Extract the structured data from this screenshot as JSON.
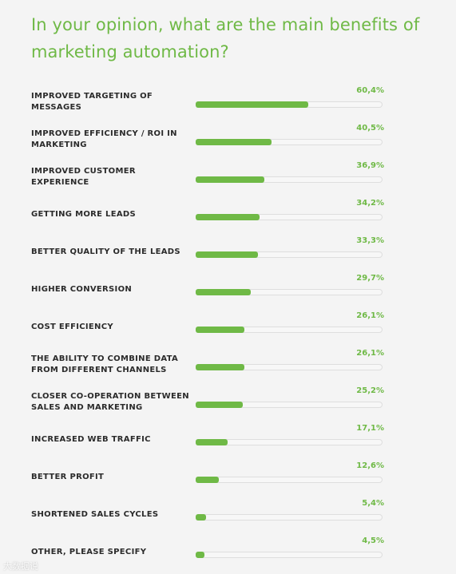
{
  "chart_data": {
    "type": "bar",
    "orientation": "horizontal",
    "title": "In your opinion, what are the main benefits of marketing automation?",
    "categories": [
      "IMPROVED TARGETING OF MESSAGES",
      "IMPROVED EFFICIENCY / ROI IN MARKETING",
      "IMPROVED CUSTOMER EXPERIENCE",
      "GETTING MORE LEADS",
      "BETTER QUALITY OF THE LEADS",
      "HIGHER CONVERSION",
      "COST EFFICIENCY",
      "THE ABILITY TO COMBINE DATA FROM DIFFERENT CHANNELS",
      "CLOSER CO-OPERATION BETWEEN SALES AND MARKETING",
      "INCREASED WEB TRAFFIC",
      "BETTER PROFIT",
      "SHORTENED SALES CYCLES",
      "OTHER, PLEASE SPECIFY"
    ],
    "values": [
      60.4,
      40.5,
      36.9,
      34.2,
      33.3,
      29.7,
      26.1,
      26.1,
      25.2,
      17.1,
      12.6,
      5.4,
      4.5
    ],
    "value_labels": [
      "60,4%",
      "40,5%",
      "36,9%",
      "34,2%",
      "33,3%",
      "29,7%",
      "26,1%",
      "26,1%",
      "25,2%",
      "17,1%",
      "12,6%",
      "5,4%",
      "4,5%"
    ],
    "unit": "%",
    "xlim": [
      0,
      100
    ],
    "grid": false,
    "legend": "none"
  },
  "colors": {
    "bar": "#6fb946",
    "title": "#6fb946",
    "value_label": "#6fb946",
    "track": "#f7f7f7",
    "track_border": "#dedede",
    "label": "#2b2b2b",
    "background": "#f4f4f4"
  },
  "watermark": {
    "text": "大数据说"
  }
}
